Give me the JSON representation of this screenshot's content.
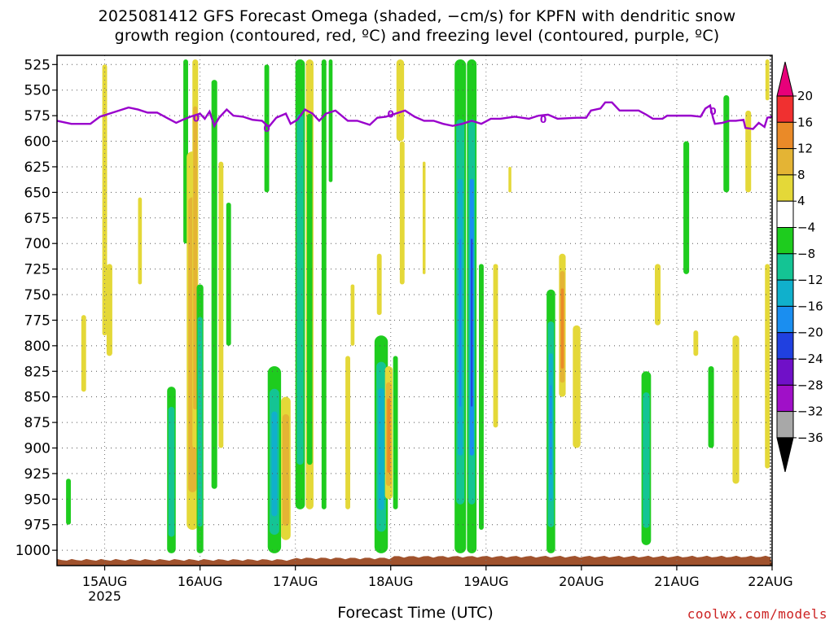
{
  "header": {
    "title_line1": "2025081412 GFS Forecast Omega (shaded, −cm/s) for KPFN with dendritic snow",
    "title_line2": "growth region (contoured, red, ºC) and freezing level (contoured, purple, ºC)",
    "credit": "coolwx.com/models"
  },
  "chart_data": {
    "type": "heatmap",
    "xlabel": "Forecast Time (UTC)",
    "x_ticks": [
      "15AUG",
      "16AUG",
      "17AUG",
      "18AUG",
      "19AUG",
      "20AUG",
      "21AUG",
      "22AUG"
    ],
    "x_tick_year": "2025",
    "xlim_days": [
      14.5,
      22.0
    ],
    "y_ticks": [
      525,
      550,
      575,
      600,
      625,
      650,
      675,
      700,
      725,
      750,
      775,
      800,
      825,
      850,
      875,
      900,
      925,
      950,
      975,
      1000
    ],
    "ylim_hpa": [
      516,
      1015
    ],
    "grid": true,
    "colorbar_labels": [
      "20",
      "16",
      "12",
      "8",
      "4",
      "−4",
      "−8",
      "−12",
      "−16",
      "−20",
      "−24",
      "−28",
      "−32",
      "−36"
    ],
    "colorbar_colors": {
      "above_20": "#e8007a",
      "16_20": "#f03030",
      "12_16": "#ea8a28",
      "8_12": "#e4b434",
      "4_8": "#e4d838",
      "neg4_4": "#ffffff",
      "neg8_neg4": "#1ecc1e",
      "neg12_neg8": "#14c494",
      "neg16_neg12": "#10b0cc",
      "neg20_neg16": "#1a8ef0",
      "neg24_neg20": "#2040e0",
      "neg28_neg24": "#7010c8",
      "neg32_neg28": "#a010c8",
      "neg36_neg32": "#a8a8a8",
      "below_neg36": "#000000"
    },
    "freezing_level": {
      "color": "#9900cc",
      "contour_label": "0",
      "points": [
        [
          14.5,
          580
        ],
        [
          14.65,
          583
        ],
        [
          14.85,
          583
        ],
        [
          14.95,
          576
        ],
        [
          15.05,
          573
        ],
        [
          15.15,
          570
        ],
        [
          15.25,
          567
        ],
        [
          15.35,
          569
        ],
        [
          15.45,
          572
        ],
        [
          15.55,
          572
        ],
        [
          15.65,
          577
        ],
        [
          15.75,
          582
        ],
        [
          15.82,
          579
        ],
        [
          15.9,
          576
        ],
        [
          16.0,
          573
        ],
        [
          16.05,
          578
        ],
        [
          16.1,
          571
        ],
        [
          16.15,
          585
        ],
        [
          16.2,
          577
        ],
        [
          16.28,
          569
        ],
        [
          16.35,
          575
        ],
        [
          16.45,
          576
        ],
        [
          16.55,
          579
        ],
        [
          16.65,
          580
        ],
        [
          16.72,
          586
        ],
        [
          16.8,
          577
        ],
        [
          16.9,
          573
        ],
        [
          16.95,
          583
        ],
        [
          17.02,
          579
        ],
        [
          17.1,
          569
        ],
        [
          17.18,
          573
        ],
        [
          17.25,
          580
        ],
        [
          17.32,
          573
        ],
        [
          17.42,
          570
        ],
        [
          17.55,
          580
        ],
        [
          17.65,
          580
        ],
        [
          17.78,
          584
        ],
        [
          17.86,
          577
        ],
        [
          17.95,
          576
        ],
        [
          18.05,
          573
        ],
        [
          18.15,
          570
        ],
        [
          18.25,
          576
        ],
        [
          18.35,
          580
        ],
        [
          18.45,
          580
        ],
        [
          18.55,
          583
        ],
        [
          18.65,
          585
        ],
        [
          18.75,
          583
        ],
        [
          18.85,
          580
        ],
        [
          18.95,
          583
        ],
        [
          19.05,
          578
        ],
        [
          19.15,
          578
        ],
        [
          19.3,
          576
        ],
        [
          19.45,
          578
        ],
        [
          19.55,
          575
        ],
        [
          19.65,
          574
        ],
        [
          19.75,
          578
        ],
        [
          19.95,
          577
        ],
        [
          20.05,
          577
        ],
        [
          20.1,
          570
        ],
        [
          20.2,
          568
        ],
        [
          20.25,
          562
        ],
        [
          20.32,
          562
        ],
        [
          20.4,
          570
        ],
        [
          20.5,
          570
        ],
        [
          20.6,
          570
        ],
        [
          20.68,
          574
        ],
        [
          20.75,
          578
        ],
        [
          20.85,
          578
        ],
        [
          20.9,
          575
        ],
        [
          21.15,
          575
        ],
        [
          21.25,
          576
        ],
        [
          21.3,
          568
        ],
        [
          21.35,
          565
        ],
        [
          21.38,
          577
        ],
        [
          21.4,
          583
        ],
        [
          21.48,
          582
        ],
        [
          21.55,
          580
        ],
        [
          21.62,
          580
        ],
        [
          21.7,
          579
        ],
        [
          21.72,
          587
        ],
        [
          21.8,
          588
        ],
        [
          21.86,
          582
        ],
        [
          21.92,
          586
        ],
        [
          21.95,
          577
        ],
        [
          22.0,
          576
        ]
      ]
    },
    "dendritic_label": "0",
    "terrain_color": "#a0522d",
    "omega_blobs": [
      {
        "t": 14.62,
        "top": 930,
        "bot": 975,
        "w": 0.05,
        "levels": [
          "neg8_neg4"
        ]
      },
      {
        "t": 14.78,
        "top": 770,
        "bot": 845,
        "w": 0.05,
        "levels": [
          "4_8"
        ]
      },
      {
        "t": 15.0,
        "top": 525,
        "bot": 790,
        "w": 0.05,
        "levels": [
          "4_8"
        ]
      },
      {
        "t": 15.05,
        "top": 720,
        "bot": 810,
        "w": 0.06,
        "levels": [
          "4_8"
        ]
      },
      {
        "t": 15.37,
        "top": 655,
        "bot": 740,
        "w": 0.04,
        "levels": [
          "4_8"
        ]
      },
      {
        "t": 15.7,
        "top": 840,
        "bot": 1003,
        "w": 0.09,
        "levels": [
          "neg8_neg4",
          "neg12_neg8"
        ]
      },
      {
        "t": 15.85,
        "top": 520,
        "bot": 700,
        "w": 0.05,
        "levels": [
          "neg8_neg4"
        ]
      },
      {
        "t": 15.92,
        "top": 610,
        "bot": 980,
        "w": 0.12,
        "levels": [
          "4_8",
          "8_12"
        ]
      },
      {
        "t": 15.95,
        "top": 520,
        "bot": 900,
        "w": 0.06,
        "levels": [
          "4_8",
          "8_12"
        ]
      },
      {
        "t": 16.0,
        "top": 740,
        "bot": 1003,
        "w": 0.07,
        "levels": [
          "neg8_neg4",
          "neg12_neg8"
        ]
      },
      {
        "t": 16.15,
        "top": 540,
        "bot": 940,
        "w": 0.06,
        "levels": [
          "neg8_neg4"
        ]
      },
      {
        "t": 16.22,
        "top": 620,
        "bot": 900,
        "w": 0.05,
        "levels": [
          "4_8"
        ]
      },
      {
        "t": 16.3,
        "top": 660,
        "bot": 800,
        "w": 0.05,
        "levels": [
          "neg8_neg4"
        ]
      },
      {
        "t": 16.7,
        "top": 525,
        "bot": 650,
        "w": 0.05,
        "levels": [
          "neg8_neg4"
        ]
      },
      {
        "t": 16.78,
        "top": 820,
        "bot": 1003,
        "w": 0.14,
        "levels": [
          "neg8_neg4",
          "neg12_neg8",
          "neg16_neg12"
        ]
      },
      {
        "t": 16.9,
        "top": 850,
        "bot": 990,
        "w": 0.1,
        "levels": [
          "4_8",
          "8_12"
        ]
      },
      {
        "t": 17.05,
        "top": 520,
        "bot": 960,
        "w": 0.1,
        "levels": [
          "neg8_neg4",
          "neg12_neg8"
        ]
      },
      {
        "t": 17.15,
        "top": 520,
        "bot": 960,
        "w": 0.08,
        "levels": [
          "4_8",
          "neg8_neg4"
        ]
      },
      {
        "t": 17.3,
        "top": 520,
        "bot": 960,
        "w": 0.05,
        "levels": [
          "neg8_neg4"
        ]
      },
      {
        "t": 17.37,
        "top": 520,
        "bot": 640,
        "w": 0.04,
        "levels": [
          "neg8_neg4"
        ]
      },
      {
        "t": 17.55,
        "top": 810,
        "bot": 960,
        "w": 0.05,
        "levels": [
          "4_8"
        ]
      },
      {
        "t": 17.6,
        "top": 740,
        "bot": 800,
        "w": 0.04,
        "levels": [
          "4_8"
        ]
      },
      {
        "t": 17.88,
        "top": 710,
        "bot": 770,
        "w": 0.05,
        "levels": [
          "4_8"
        ]
      },
      {
        "t": 17.9,
        "top": 790,
        "bot": 1003,
        "w": 0.14,
        "levels": [
          "neg8_neg4",
          "neg12_neg8",
          "neg16_neg12"
        ]
      },
      {
        "t": 17.98,
        "top": 820,
        "bot": 950,
        "w": 0.08,
        "levels": [
          "4_8",
          "8_12",
          "12_16"
        ]
      },
      {
        "t": 18.05,
        "top": 810,
        "bot": 960,
        "w": 0.05,
        "levels": [
          "neg8_neg4"
        ]
      },
      {
        "t": 18.1,
        "top": 520,
        "bot": 600,
        "w": 0.08,
        "levels": [
          "4_8"
        ]
      },
      {
        "t": 18.12,
        "top": 600,
        "bot": 740,
        "w": 0.05,
        "levels": [
          "4_8"
        ]
      },
      {
        "t": 18.35,
        "top": 620,
        "bot": 730,
        "w": 0.03,
        "levels": [
          "4_8"
        ]
      },
      {
        "t": 18.73,
        "top": 520,
        "bot": 1003,
        "w": 0.12,
        "levels": [
          "neg8_neg4",
          "neg12_neg8",
          "neg16_neg12",
          "neg20_neg16"
        ]
      },
      {
        "t": 18.85,
        "top": 520,
        "bot": 1003,
        "w": 0.1,
        "levels": [
          "neg8_neg4",
          "neg12_neg8",
          "neg20_neg16",
          "neg24_neg20"
        ]
      },
      {
        "t": 18.95,
        "top": 720,
        "bot": 980,
        "w": 0.05,
        "levels": [
          "neg8_neg4"
        ]
      },
      {
        "t": 19.1,
        "top": 720,
        "bot": 880,
        "w": 0.05,
        "levels": [
          "4_8"
        ]
      },
      {
        "t": 19.25,
        "top": 625,
        "bot": 650,
        "w": 0.03,
        "levels": [
          "4_8"
        ]
      },
      {
        "t": 19.68,
        "top": 745,
        "bot": 1003,
        "w": 0.09,
        "levels": [
          "neg8_neg4",
          "neg12_neg8",
          "neg16_neg12",
          "neg20_neg16"
        ]
      },
      {
        "t": 19.8,
        "top": 710,
        "bot": 850,
        "w": 0.07,
        "levels": [
          "4_8",
          "8_12",
          "12_16"
        ]
      },
      {
        "t": 19.95,
        "top": 780,
        "bot": 900,
        "w": 0.08,
        "levels": [
          "4_8"
        ]
      },
      {
        "t": 20.68,
        "top": 825,
        "bot": 995,
        "w": 0.1,
        "levels": [
          "neg8_neg4",
          "neg12_neg8"
        ]
      },
      {
        "t": 20.8,
        "top": 720,
        "bot": 780,
        "w": 0.06,
        "levels": [
          "4_8"
        ]
      },
      {
        "t": 21.1,
        "top": 600,
        "bot": 730,
        "w": 0.06,
        "levels": [
          "neg8_neg4"
        ]
      },
      {
        "t": 21.2,
        "top": 785,
        "bot": 810,
        "w": 0.05,
        "levels": [
          "4_8"
        ]
      },
      {
        "t": 21.36,
        "top": 820,
        "bot": 900,
        "w": 0.06,
        "levels": [
          "neg8_neg4"
        ]
      },
      {
        "t": 21.52,
        "top": 555,
        "bot": 650,
        "w": 0.06,
        "levels": [
          "neg8_neg4"
        ]
      },
      {
        "t": 21.62,
        "top": 790,
        "bot": 935,
        "w": 0.07,
        "levels": [
          "4_8"
        ]
      },
      {
        "t": 21.75,
        "top": 570,
        "bot": 650,
        "w": 0.06,
        "levels": [
          "4_8"
        ]
      },
      {
        "t": 21.95,
        "top": 520,
        "bot": 560,
        "w": 0.04,
        "levels": [
          "4_8"
        ]
      },
      {
        "t": 21.95,
        "top": 720,
        "bot": 920,
        "w": 0.05,
        "levels": [
          "4_8"
        ]
      }
    ]
  }
}
